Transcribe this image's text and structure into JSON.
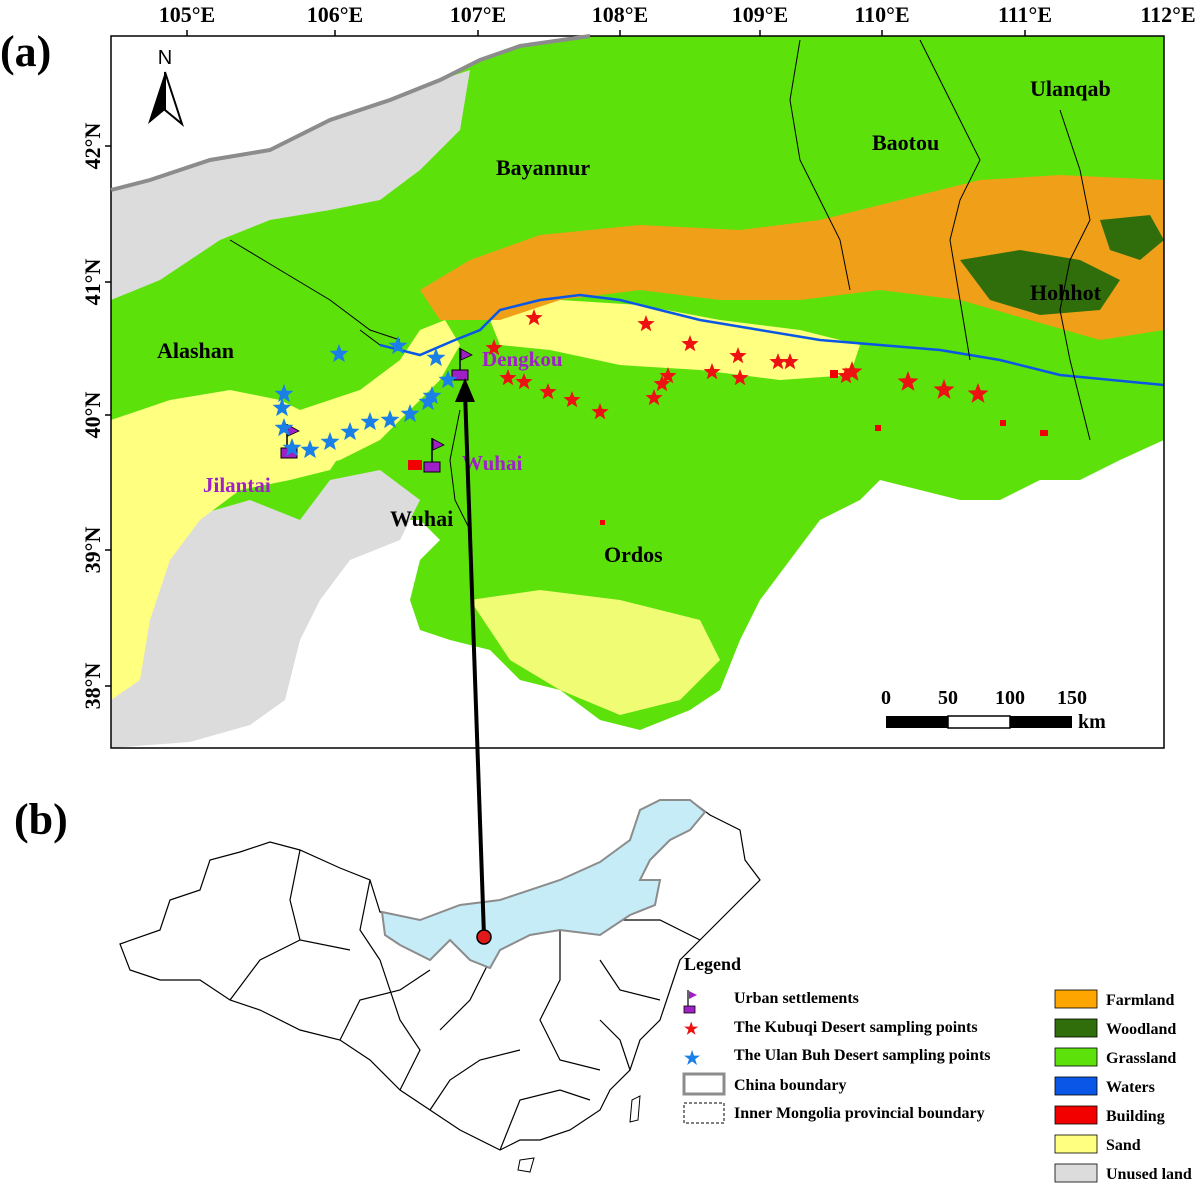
{
  "panel_a": {
    "label": "(a)",
    "lon_ticks": [
      "105°E",
      "106°E",
      "107°E",
      "108°E",
      "109°E",
      "110°E",
      "111°E",
      "112°E"
    ],
    "lat_ticks": [
      "42°N",
      "41°N",
      "40°N",
      "39°N",
      "38°N"
    ],
    "north": "N",
    "regions": [
      "Bayannur",
      "Baotou",
      "Ulanqab",
      "Hohhot",
      "Alashan",
      "Ordos",
      "Wuhai"
    ],
    "settlements": [
      "Dengkou",
      "Jilantai",
      "Wuhai"
    ],
    "scale": {
      "ticks": [
        "0",
        "50",
        "100",
        "150"
      ],
      "unit": "km"
    }
  },
  "panel_b": {
    "label": "(b)"
  },
  "legend": {
    "title": "Legend",
    "symbols": [
      "Urban settlements",
      "The Kubuqi Desert sampling points",
      "The Ulan Buh Desert sampling points",
      "China boundary",
      "Inner Mongolia provincial boundary"
    ],
    "classes": [
      {
        "name": "Farmland",
        "color": "#ffa500"
      },
      {
        "name": "Woodland",
        "color": "#2f6e0a"
      },
      {
        "name": "Grassland",
        "color": "#5de10b"
      },
      {
        "name": "Waters",
        "color": "#0a56e6"
      },
      {
        "name": "Building",
        "color": "#f20000"
      },
      {
        "name": "Sand",
        "color": "#ffff80"
      },
      {
        "name": "Unused land",
        "color": "#dcdcdc"
      }
    ]
  },
  "colors": {
    "kubuqi_star": "#ee1111",
    "ulanbuh_star": "#1a7fe6",
    "settlement": "#a020c8",
    "highlight": "#c6ecf7"
  }
}
